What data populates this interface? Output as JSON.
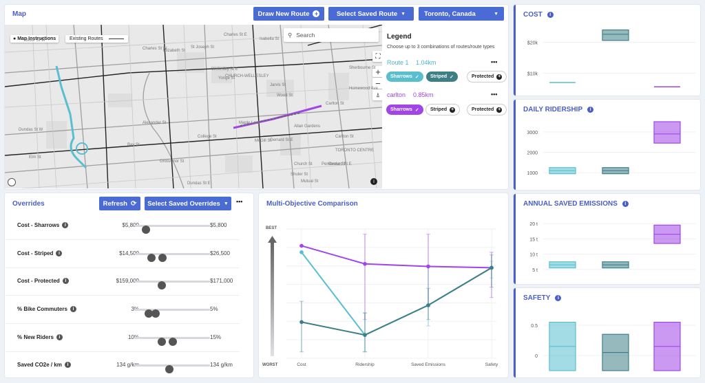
{
  "map_panel": {
    "title": "Map",
    "draw_button": "Draw New Route",
    "saved_route_select": "Select Saved Route",
    "location_select": "Toronto, Canada",
    "search_placeholder": "Search",
    "map_instructions": "Map Instructions",
    "existing_routes": "Existing Routes",
    "map_labels": [
      "Charles St E",
      "Isabella St",
      "Charles St W",
      "St Joseph St",
      "Wellesley St E",
      "Carlton St",
      "Maple Leaf",
      "Allan Gardens",
      "Gerrard St E",
      "McGill St",
      "Dundas St W",
      "Elm St",
      "College St",
      "Gerrard St E",
      "Carlton St",
      "Yonge St",
      "Jarvis St",
      "Sherbourne St",
      "TORONTO CENTRE",
      "CHURCH-WELLESLEY",
      "Bay St",
      "Grosvenor St",
      "Wood St",
      "Alexander St",
      "Homewood Ave",
      "Church St",
      "Mutual St",
      "Pembroke St",
      "Dundas St E",
      "Shuter St",
      "Elizabeth St",
      "Bloor St W"
    ]
  },
  "legend": {
    "title": "Legend",
    "subtitle": "Choose up to 3 combinations of routes/route types",
    "routes": [
      {
        "name": "Route 1",
        "distance": "1.04km",
        "color": "#4bb6c8",
        "chips": [
          {
            "label": "Sharrows",
            "state": "selected",
            "color": "#59bfcf"
          },
          {
            "label": "Striped",
            "state": "selected",
            "color": "#3e7f86"
          },
          {
            "label": "Protected",
            "state": "off"
          }
        ]
      },
      {
        "name": "carlton",
        "distance": "0.85km",
        "color": "#a046e8",
        "chips": [
          {
            "label": "Sharrows",
            "state": "selected",
            "color": "#a046e8"
          },
          {
            "label": "Striped",
            "state": "off"
          },
          {
            "label": "Protected",
            "state": "off"
          }
        ]
      }
    ],
    "more": "•••"
  },
  "overrides": {
    "title": "Overrides",
    "refresh": "Refresh",
    "saved_select": "Select Saved Overrides",
    "more": "•••",
    "rows": [
      {
        "label": "Cost - Sharrows",
        "min": "$5,800",
        "max": "$5,800",
        "knobs": [
          0.15
        ]
      },
      {
        "label": "Cost - Striped",
        "min": "$14,500",
        "max": "$26,500",
        "knobs": [
          0.23,
          0.37
        ]
      },
      {
        "label": "Cost - Protected",
        "min": "$159,000",
        "max": "$171,000",
        "knobs": [
          0.36
        ]
      },
      {
        "label": "% Bike Commuters",
        "min": "3%",
        "max": "5%",
        "knobs": [
          0.19,
          0.28
        ]
      },
      {
        "label": "% New Riders",
        "min": "10%",
        "max": "15%",
        "knobs": [
          0.36,
          0.51
        ]
      },
      {
        "label": "Saved CO2e / km",
        "min": "134 g/km",
        "max": "134 g/km",
        "knobs": [
          0.46
        ]
      }
    ]
  },
  "moc": {
    "title": "Multi-Objective Comparison",
    "best": "BEST",
    "worst": "WORST",
    "axes": [
      "Cost",
      "Ridership",
      "Saved Emissions",
      "Safety"
    ],
    "series": [
      {
        "color": "#a046e8",
        "points": [
          0.87,
          0.73,
          0.71,
          0.7
        ],
        "err": [
          [
            0.87,
            0.87
          ],
          [
            0.96,
            0.3
          ],
          [
            0.96,
            0.4
          ],
          [
            0.82,
            0.47
          ]
        ]
      },
      {
        "color": "#59bfcf",
        "points": [
          0.82,
          0.18,
          0.41,
          0.7
        ],
        "err": [
          [
            0.82,
            0.82
          ],
          [
            0.35,
            0.05
          ],
          [
            0.72,
            0.25
          ],
          [
            0.75,
            0.62
          ]
        ]
      },
      {
        "color": "#3e7f86",
        "points": [
          0.28,
          0.18,
          0.41,
          0.7
        ],
        "err": [
          [
            0.44,
            0.05
          ],
          [
            0.35,
            0.05
          ],
          [
            0.54,
            0.3
          ],
          [
            0.8,
            0.55
          ]
        ]
      }
    ]
  },
  "right_charts": [
    {
      "title": "COST",
      "ticks": [
        "$20k",
        "$10k"
      ],
      "boxes": [
        {
          "color": "#59bfcf",
          "lo": 0.1,
          "hi": 0.1,
          "mid": 0.1,
          "flat": true
        },
        {
          "color": "#3e7f86",
          "lo": 0.78,
          "hi": 0.95,
          "mid": 0.88
        },
        {
          "color": "#a046e8",
          "lo": 0.03,
          "hi": 0.03,
          "mid": 0.03,
          "flat": true
        }
      ]
    },
    {
      "title": "DAILY RIDERSHIP",
      "ticks": [
        "3000",
        "2000",
        "1000"
      ],
      "boxes": [
        {
          "color": "#59bfcf",
          "lo": 0.15,
          "hi": 0.25,
          "mid": 0.2
        },
        {
          "color": "#3e7f86",
          "lo": 0.15,
          "hi": 0.25,
          "mid": 0.2
        },
        {
          "color": "#a046e8",
          "lo": 0.65,
          "hi": 1.0,
          "mid": 0.8
        }
      ]
    },
    {
      "title": "ANNUAL SAVED EMISSIONS",
      "ticks": [
        "20 t",
        "15 t",
        "10 t",
        "5 t"
      ],
      "boxes": [
        {
          "color": "#59bfcf",
          "lo": 0.15,
          "hi": 0.25,
          "mid": 0.2
        },
        {
          "color": "#3e7f86",
          "lo": 0.15,
          "hi": 0.25,
          "mid": 0.2
        },
        {
          "color": "#a046e8",
          "lo": 0.55,
          "hi": 0.85,
          "mid": 0.7
        }
      ]
    },
    {
      "title": "SAFETY",
      "ticks": [
        "0.5",
        "0"
      ],
      "boxes": [
        {
          "color": "#59bfcf",
          "lo": 0.0,
          "hi": 0.8,
          "mid": 0.4
        },
        {
          "color": "#3e7f86",
          "lo": 0.0,
          "hi": 0.6,
          "mid": 0.3
        },
        {
          "color": "#a046e8",
          "lo": 0.0,
          "hi": 0.8,
          "mid": 0.4
        }
      ]
    }
  ]
}
